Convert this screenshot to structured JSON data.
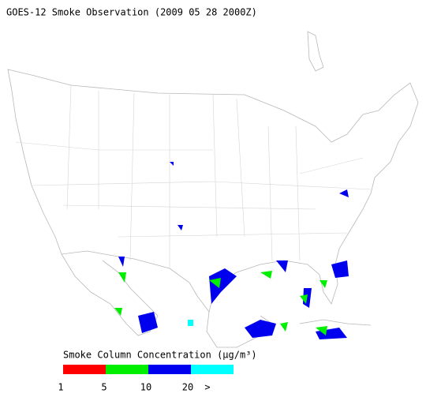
{
  "title": "GOES-12 Smoke Observation (2009 05 28  2000Z)",
  "legend": {
    "title": "Smoke Column Concentration (μg/m³)",
    "colors": [
      "#ff0000",
      "#00ee00",
      "#0000ee",
      "#00ffff"
    ],
    "ticks": [
      "1",
      "5",
      "10",
      "20",
      ">"
    ]
  }
}
